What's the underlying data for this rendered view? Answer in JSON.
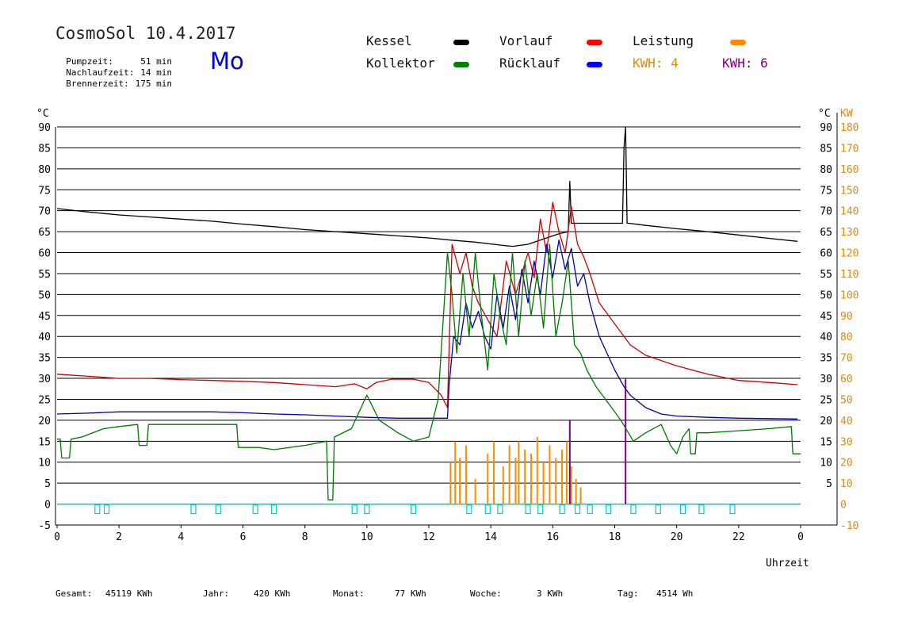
{
  "header": {
    "title": "CosmoSol 10.4.2017",
    "weekday": "Mo",
    "info": [
      {
        "label": "Pumpzeit:",
        "value": "51 min"
      },
      {
        "label": "Nachlaufzeit:",
        "value": "14 min"
      },
      {
        "label": "Brennerzeit:",
        "value": "175 min"
      }
    ]
  },
  "legend": {
    "kessel": {
      "label": "Kessel",
      "color": "#000000"
    },
    "vorlauf": {
      "label": "Vorlauf",
      "color": "#ff0000"
    },
    "leistung": {
      "label": "Leistung",
      "color": "#ff8c00"
    },
    "kollektor": {
      "label": "Kollektor",
      "color": "#008000"
    },
    "ruecklauf": {
      "label": "Rücklauf",
      "color": "#0000ff"
    },
    "kwh_a": {
      "label": "KWH: 4",
      "color": "#ff8c00"
    },
    "kwh_b": {
      "label": "KWH: 6",
      "color": "#800080"
    }
  },
  "footer": {
    "gesamt_label": "Gesamt:",
    "gesamt_value": "45119 KWh",
    "jahr_label": "Jahr:",
    "jahr_value": "420 KWh",
    "monat_label": "Monat:",
    "monat_value": "77 KWh",
    "woche_label": "Woche:",
    "woche_value": "3 KWh",
    "tag_label": "Tag:",
    "tag_value": "4514 Wh"
  },
  "chart_data": {
    "type": "line",
    "xlabel": "Uhrzeit",
    "ylabel_left": "°C",
    "ylabel_right_c": "°C",
    "ylabel_right_kw": "KW",
    "xlim": [
      0,
      24
    ],
    "ylim": [
      -5,
      90
    ],
    "ylim_kw": [
      -10,
      180
    ],
    "xticks": [
      "0",
      "2",
      "4",
      "6",
      "8",
      "10",
      "12",
      "14",
      "16",
      "18",
      "20",
      "22",
      "0"
    ],
    "yticks_left": [
      "-5",
      "0",
      "5",
      "10",
      "15",
      "20",
      "25",
      "30",
      "35",
      "40",
      "45",
      "50",
      "55",
      "60",
      "65",
      "70",
      "75",
      "80",
      "85",
      "90"
    ],
    "yticks_right_c": [
      "5",
      "10",
      "15",
      "20",
      "25",
      "30",
      "35",
      "40",
      "45",
      "50",
      "55",
      "60",
      "65",
      "70",
      "75",
      "80",
      "85",
      "90"
    ],
    "yticks_right_kw": [
      "-10",
      "0",
      "10",
      "20",
      "30",
      "40",
      "50",
      "60",
      "70",
      "80",
      "90",
      "100",
      "110",
      "120",
      "130",
      "140",
      "150",
      "160",
      "170",
      "180"
    ],
    "grid": true,
    "series": [
      {
        "name": "Kessel",
        "color": "#000000",
        "x": [
          0,
          1,
          2,
          3,
          4,
          5,
          6,
          7,
          8,
          9,
          10,
          11,
          12,
          12.7,
          13.5,
          14.3,
          14.7,
          15.2,
          15.8,
          16.2,
          16.5,
          16.55,
          16.6,
          17,
          18,
          18.25,
          18.3,
          18.35,
          18.4,
          18.45,
          19,
          20,
          21,
          22,
          23,
          23.9
        ],
        "y": [
          70.5,
          69.7,
          69,
          68.5,
          68,
          67.5,
          66.8,
          66.2,
          65.5,
          65,
          64.5,
          64,
          63.5,
          63,
          62.5,
          61.8,
          61.5,
          62,
          63.5,
          64.5,
          65,
          77,
          67,
          67,
          67,
          67,
          85,
          90,
          67,
          67,
          66.5,
          65.7,
          65,
          64.2,
          63.4,
          62.7
        ]
      },
      {
        "name": "Vorlauf",
        "color": "#cc0000",
        "x": [
          0,
          1,
          2,
          3,
          4,
          5,
          6,
          7,
          8,
          9,
          9.6,
          10,
          10.3,
          10.8,
          11.5,
          12,
          12.4,
          12.6,
          12.75,
          13,
          13.2,
          13.4,
          13.6,
          13.9,
          14.2,
          14.5,
          14.8,
          15,
          15.2,
          15.4,
          15.6,
          15.8,
          16,
          16.2,
          16.4,
          16.6,
          16.8,
          17,
          17.2,
          17.5,
          18,
          18.5,
          19,
          20,
          21,
          22,
          23,
          23.9
        ],
        "y": [
          31,
          30.5,
          30,
          30,
          29.7,
          29.5,
          29.3,
          29,
          28.5,
          28,
          28.7,
          27.5,
          29,
          29.8,
          29.8,
          29,
          26,
          23,
          62,
          55,
          60,
          52,
          48,
          44,
          40,
          58,
          50,
          55,
          60,
          54,
          68,
          60,
          72,
          65,
          60,
          71,
          62,
          59,
          55,
          48,
          43,
          38,
          35.5,
          33,
          31,
          29.5,
          29,
          28.5
        ]
      },
      {
        "name": "Rücklauf",
        "color": "#0000aa",
        "x": [
          0,
          1,
          2,
          3,
          4,
          5,
          6,
          7,
          8,
          9,
          10,
          11,
          12.6,
          12.65,
          12.8,
          13,
          13.2,
          13.4,
          13.6,
          13.8,
          14,
          14.2,
          14.4,
          14.6,
          14.8,
          15,
          15.2,
          15.4,
          15.6,
          15.8,
          16,
          16.2,
          16.4,
          16.6,
          16.8,
          17,
          17.2,
          17.5,
          18,
          18.3,
          18.5,
          19,
          19.5,
          20,
          21,
          22,
          23,
          23.9
        ],
        "y": [
          21.5,
          21.7,
          22,
          22,
          22,
          22,
          21.8,
          21.5,
          21.3,
          21,
          20.7,
          20.5,
          20.5,
          28,
          40,
          38,
          48,
          42,
          46,
          40,
          37,
          50,
          42,
          52,
          44,
          56,
          48,
          58,
          50,
          62,
          54,
          63,
          56,
          61,
          52,
          55,
          48,
          40,
          32,
          28,
          26,
          23,
          21.5,
          21,
          20.7,
          20.5,
          20.4,
          20.3
        ]
      },
      {
        "name": "Kollektor",
        "color": "#007700",
        "x": [
          0,
          0.1,
          0.15,
          0.4,
          0.45,
          0.8,
          1.5,
          2,
          2.6,
          2.65,
          2.9,
          2.95,
          3.5,
          4,
          5,
          5.8,
          5.85,
          6.5,
          7,
          8,
          8.7,
          8.75,
          8.9,
          8.95,
          9.5,
          10,
          10.4,
          11,
          11.5,
          12,
          12.3,
          12.6,
          12.75,
          12.9,
          13.1,
          13.3,
          13.5,
          13.7,
          13.9,
          14.1,
          14.3,
          14.5,
          14.7,
          14.9,
          15.1,
          15.3,
          15.5,
          15.7,
          15.9,
          16.1,
          16.3,
          16.5,
          16.7,
          16.9,
          17.1,
          17.4,
          17.8,
          18.2,
          18.6,
          19,
          19.5,
          19.8,
          20,
          20.2,
          20.4,
          20.45,
          20.6,
          20.65,
          21,
          22,
          23,
          23.7,
          23.75,
          24
        ],
        "y": [
          15.5,
          15.5,
          11,
          11,
          15.5,
          16,
          18,
          18.5,
          19,
          14,
          14,
          19,
          19,
          19,
          19,
          19,
          13.5,
          13.5,
          13,
          14,
          15,
          1,
          1,
          16,
          18,
          26,
          20,
          17,
          15,
          16,
          25,
          60,
          50,
          36,
          55,
          40,
          60,
          45,
          32,
          55,
          45,
          38,
          60,
          40,
          58,
          45,
          55,
          42,
          62,
          40,
          48,
          58,
          38,
          36,
          32,
          28,
          24,
          20,
          15,
          17,
          19,
          14,
          12,
          16,
          18,
          12,
          12,
          17,
          17,
          17.5,
          18,
          18.5,
          12,
          12
        ]
      }
    ],
    "leistung_bars": {
      "color": "#ff8c00",
      "x": [
        12.7,
        12.85,
        13.0,
        13.2,
        13.5,
        13.9,
        14.1,
        14.4,
        14.6,
        14.8,
        14.9,
        15.1,
        15.3,
        15.5,
        15.7,
        15.9,
        16.1,
        16.3,
        16.45,
        16.6,
        16.75,
        16.9
      ],
      "kw": [
        20,
        30,
        22,
        28,
        12,
        24,
        30,
        18,
        28,
        22,
        30,
        26,
        24,
        32,
        20,
        28,
        22,
        26,
        30,
        18,
        12,
        8
      ]
    },
    "kwh_spikes": {
      "color": "#800080",
      "x": [
        16.55,
        18.35
      ],
      "kw": [
        40,
        60
      ]
    },
    "pump_markers": {
      "color": "#00cccc",
      "x": [
        1.3,
        1.6,
        4.4,
        5.2,
        6.4,
        7.0,
        9.6,
        10.0,
        11.5,
        13.3,
        13.9,
        14.3,
        15.2,
        15.6,
        16.3,
        16.8,
        17.2,
        17.8,
        18.6,
        19.4,
        20.2,
        20.8,
        21.8
      ]
    }
  }
}
